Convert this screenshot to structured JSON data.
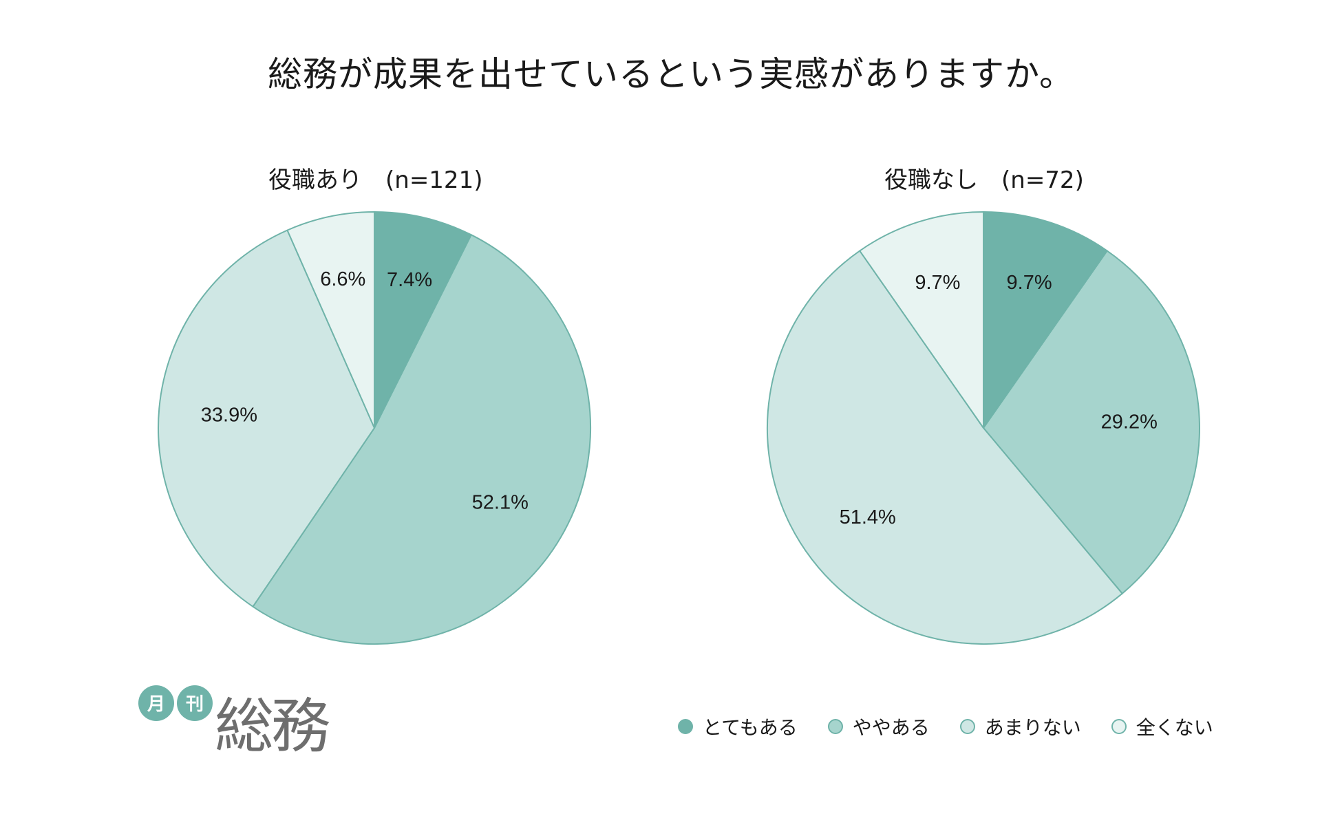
{
  "colors": {
    "stroke": "#6fb3a9",
    "series": [
      "#6fb3a9",
      "#a6d4cd",
      "#cfe7e4",
      "#e8f4f2"
    ],
    "logo_mark": "#6fb3a9",
    "logo_text": "#6e6e6e"
  },
  "logo": {
    "badge_left": "月",
    "badge_right": "刊",
    "wordmark": "総務"
  },
  "chart_data": {
    "type": "pie",
    "title": "総務が成果を出せているという実感がありますか。",
    "legend_position": "bottom-right",
    "categories": [
      "とてもある",
      "ややある",
      "あまりない",
      "全くない"
    ],
    "charts": [
      {
        "subtitle": "役職あり　(n=121)",
        "values": [
          7.4,
          52.1,
          33.9,
          6.6
        ],
        "labels": [
          "7.4%",
          "52.1%",
          "33.9%",
          "6.6%"
        ]
      },
      {
        "subtitle": "役職なし　(n=72)",
        "values": [
          9.7,
          29.2,
          51.4,
          9.7
        ],
        "labels": [
          "9.7%",
          "29.2%",
          "51.4%",
          "9.7%"
        ]
      }
    ]
  }
}
